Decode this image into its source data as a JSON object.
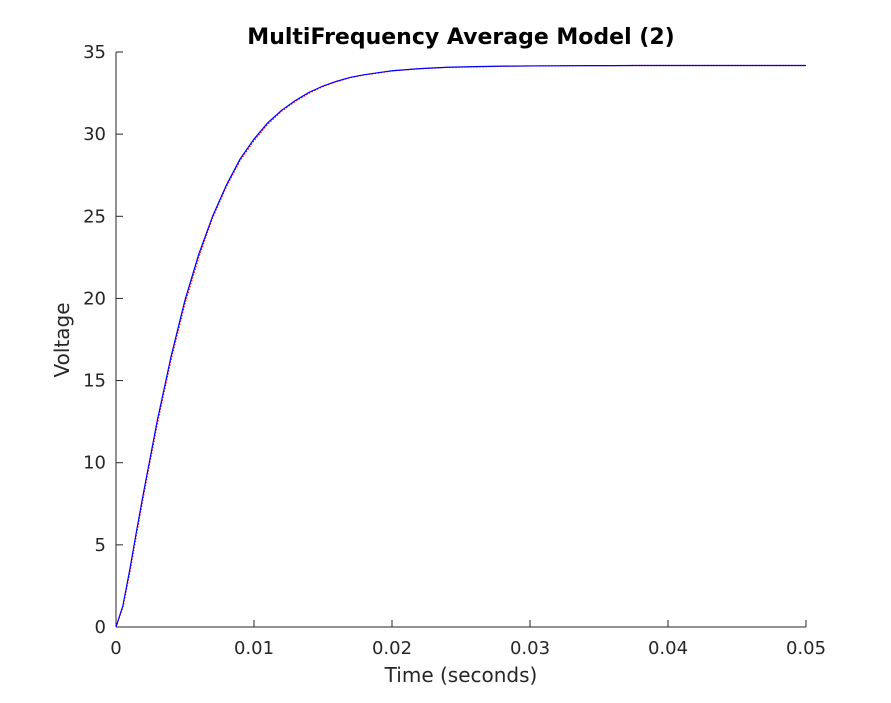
{
  "chart_data": {
    "type": "line",
    "title": "MultiFrequency Average Model (2)",
    "xlabel": "Time (seconds)",
    "ylabel": "Voltage",
    "xlim": [
      0,
      0.05
    ],
    "ylim": [
      0,
      35
    ],
    "xticks": [
      0,
      0.01,
      0.02,
      0.03,
      0.04,
      0.05
    ],
    "xtick_labels": [
      "0",
      "0.01",
      "0.02",
      "0.03",
      "0.04",
      "0.05"
    ],
    "yticks": [
      0,
      5,
      10,
      15,
      20,
      25,
      30,
      35
    ],
    "ytick_labels": [
      "0",
      "5",
      "10",
      "15",
      "20",
      "25",
      "30",
      "35"
    ],
    "grid": false,
    "legend": "none",
    "series": [
      {
        "color": "#ff0000",
        "style": "dotted",
        "x": [
          0,
          0.0005,
          0.001,
          0.0015,
          0.002,
          0.003,
          0.004,
          0.005,
          0.006,
          0.007,
          0.008,
          0.009,
          0.01,
          0.011,
          0.012,
          0.013,
          0.014,
          0.015,
          0.016,
          0.017,
          0.018,
          0.019,
          0.02,
          0.022,
          0.024,
          0.026,
          0.028,
          0.03,
          0.032,
          0.034,
          0.036,
          0.038,
          0.04,
          0.042,
          0.044,
          0.046,
          0.048,
          0.05
        ],
        "y": [
          0,
          1.2,
          3.3,
          5.7,
          8.0,
          12.4,
          16.3,
          19.7,
          22.5,
          24.9,
          26.8,
          28.4,
          29.6,
          30.6,
          31.4,
          32.0,
          32.5,
          32.9,
          33.2,
          33.45,
          33.6,
          33.72,
          33.85,
          33.98,
          34.06,
          34.1,
          34.13,
          34.15,
          34.16,
          34.17,
          34.17,
          34.18,
          34.18,
          34.18,
          34.18,
          34.18,
          34.18,
          34.18
        ]
      },
      {
        "color": "#0000ff",
        "style": "solid",
        "x": [
          0,
          0.0005,
          0.001,
          0.0015,
          0.002,
          0.003,
          0.004,
          0.005,
          0.006,
          0.007,
          0.008,
          0.009,
          0.01,
          0.011,
          0.012,
          0.013,
          0.014,
          0.015,
          0.016,
          0.017,
          0.018,
          0.019,
          0.02,
          0.022,
          0.024,
          0.026,
          0.028,
          0.03,
          0.032,
          0.034,
          0.036,
          0.038,
          0.04,
          0.042,
          0.044,
          0.046,
          0.048,
          0.05
        ],
        "y": [
          0,
          1.3,
          3.5,
          5.9,
          8.2,
          12.6,
          16.5,
          19.9,
          22.7,
          25.0,
          26.9,
          28.5,
          29.7,
          30.7,
          31.45,
          32.05,
          32.55,
          32.93,
          33.22,
          33.46,
          33.62,
          33.74,
          33.86,
          33.99,
          34.07,
          34.11,
          34.14,
          34.15,
          34.16,
          34.17,
          34.17,
          34.18,
          34.18,
          34.18,
          34.18,
          34.18,
          34.18,
          34.18
        ]
      }
    ]
  }
}
